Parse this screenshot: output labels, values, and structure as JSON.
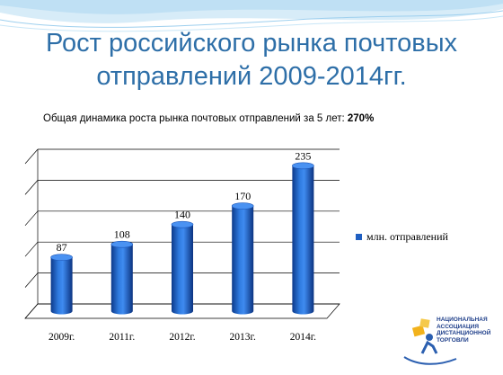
{
  "title": {
    "line1": "Рост российского рынка почтовых",
    "line2": "отправлений 2009-2014гг."
  },
  "subtitle": {
    "text": "Общая динамика роста рынка почтовых отправлений за 5 лет: ",
    "highlight": "270%"
  },
  "logo": {
    "line1": "НАЦИОНАЛЬНАЯ",
    "line2": "АССОЦИАЦИЯ",
    "line3": "ДИСТАНЦИОННОЙ",
    "line4": "ТОРГОВЛИ"
  },
  "colors": {
    "title": "#2e6fa8",
    "bar": "#1f5fc2",
    "wave": "#bfe0f4"
  },
  "chart_data": {
    "type": "bar",
    "categories": [
      "2009г.",
      "2011г.",
      "2012г.",
      "2013г.",
      "2014г."
    ],
    "series": [
      {
        "name": "млн. отправлений",
        "values": [
          87,
          108,
          140,
          170,
          235
        ]
      }
    ],
    "ylim": [
      0,
      250
    ],
    "grid": true,
    "legend_position": "right"
  }
}
